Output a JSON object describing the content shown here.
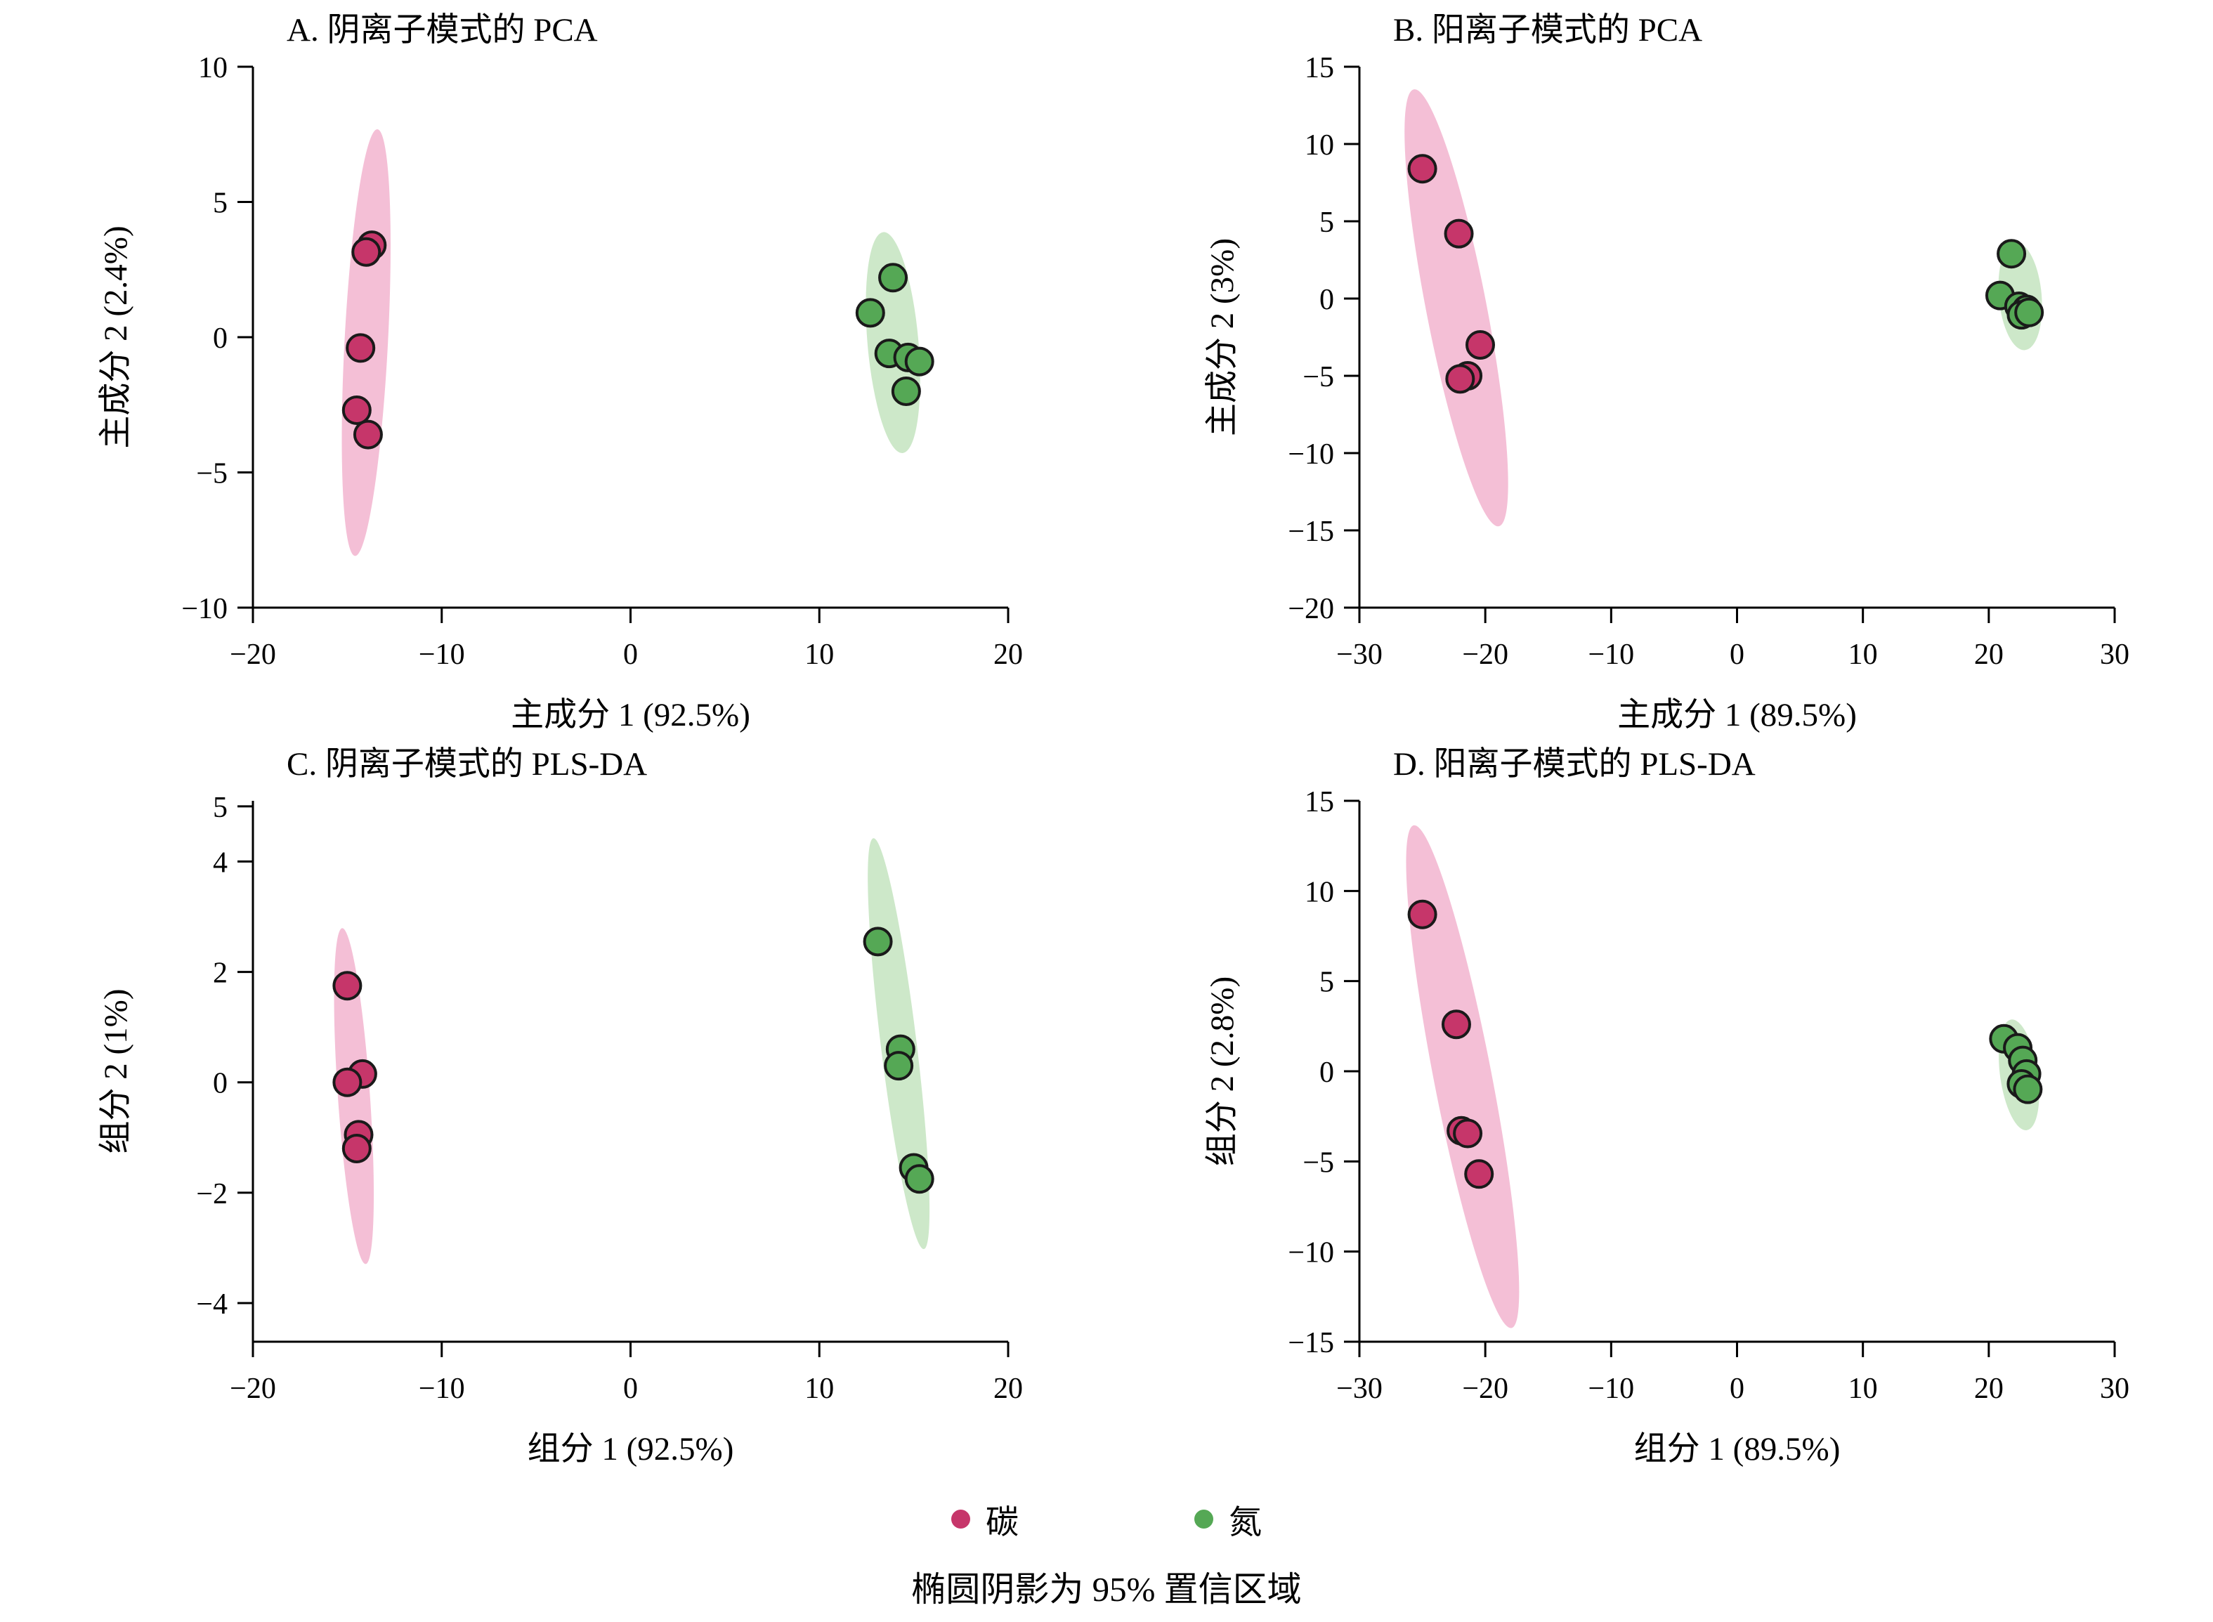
{
  "colors": {
    "carbon_point": "#c6366a",
    "carbon_ellipse": "#f3bad2",
    "nitrogen_point": "#55a855",
    "nitrogen_ellipse": "#c9e6c4",
    "point_stroke": "#1a1a1a",
    "axis": "#000000"
  },
  "legend": {
    "items": [
      {
        "name": "carbon",
        "label": "碳"
      },
      {
        "name": "nitrogen",
        "label": "氮"
      }
    ],
    "caption": "椭圆阴影为 95% 置信区域"
  },
  "chart_data": [
    {
      "id": "A",
      "type": "scatter",
      "title": "A. 阴离子模式的 PCA",
      "xlabel": "主成分 1 (92.5%)",
      "ylabel": "主成分 2 (2.4%)",
      "xlim": [
        -20,
        20
      ],
      "ylim": [
        -10,
        10
      ],
      "xticks": [
        -20,
        -10,
        0,
        10,
        20
      ],
      "yticks": [
        -10,
        -5,
        0,
        5,
        10
      ],
      "grid": false,
      "series": [
        {
          "name": "碳",
          "color_key": "carbon",
          "points": [
            [
              -13.7,
              3.4
            ],
            [
              -14.0,
              3.15
            ],
            [
              -14.3,
              -0.4
            ],
            [
              -14.5,
              -2.7
            ],
            [
              -13.9,
              -3.6
            ]
          ],
          "ellipse": {
            "cx": -14.0,
            "cy": -0.2,
            "rx": 1.15,
            "ry": 7.9,
            "angle": 3
          }
        },
        {
          "name": "氮",
          "color_key": "nitrogen",
          "points": [
            [
              13.9,
              2.2
            ],
            [
              12.7,
              0.9
            ],
            [
              13.7,
              -0.6
            ],
            [
              14.7,
              -0.75
            ],
            [
              15.3,
              -0.9
            ],
            [
              14.6,
              -2.0
            ]
          ],
          "ellipse": {
            "cx": 13.9,
            "cy": -0.2,
            "rx": 1.35,
            "ry": 4.1,
            "angle": -5
          }
        }
      ]
    },
    {
      "id": "B",
      "type": "scatter",
      "title": "B. 阳离子模式的 PCA",
      "xlabel": "主成分 1 (89.5%)",
      "ylabel": "主成分 2 (3%)",
      "xlim": [
        -30,
        30
      ],
      "ylim": [
        -20,
        15
      ],
      "xticks": [
        -30,
        -20,
        -10,
        0,
        10,
        20,
        30
      ],
      "yticks": [
        -20,
        -15,
        -10,
        -5,
        0,
        5,
        10,
        15
      ],
      "grid": false,
      "series": [
        {
          "name": "碳",
          "color_key": "carbon",
          "points": [
            [
              -25.0,
              8.4
            ],
            [
              -22.1,
              4.2
            ],
            [
              -20.4,
              -3.0
            ],
            [
              -21.4,
              -5.0
            ],
            [
              -22.0,
              -5.2
            ]
          ],
          "ellipse": {
            "cx": -22.3,
            "cy": -0.6,
            "rx": 2.4,
            "ry": 14.4,
            "angle": -11
          }
        },
        {
          "name": "氮",
          "color_key": "nitrogen",
          "points": [
            [
              21.8,
              2.9
            ],
            [
              20.9,
              0.2
            ],
            [
              22.4,
              -0.5
            ],
            [
              23.0,
              -0.7
            ],
            [
              22.6,
              -1.05
            ],
            [
              23.2,
              -0.9
            ]
          ],
          "ellipse": {
            "cx": 22.5,
            "cy": 0.15,
            "rx": 1.7,
            "ry": 3.5,
            "angle": -5
          }
        }
      ]
    },
    {
      "id": "C",
      "type": "scatter",
      "title": "C. 阴离子模式的 PLS-DA",
      "xlabel": "组分 1 (92.5%)",
      "ylabel": "组分 2 (1%)",
      "xlim": [
        -20,
        20
      ],
      "ylim": [
        -4.7,
        5.1
      ],
      "xticks": [
        -20,
        -10,
        0,
        10,
        20
      ],
      "yticks": [
        -4,
        -2,
        0,
        2,
        4,
        5
      ],
      "grid": false,
      "series": [
        {
          "name": "碳",
          "color_key": "carbon",
          "points": [
            [
              -15.0,
              1.75
            ],
            [
              -14.2,
              0.15
            ],
            [
              -15.0,
              0.0
            ],
            [
              -14.4,
              -0.95
            ],
            [
              -14.5,
              -1.2
            ]
          ],
          "ellipse": {
            "cx": -14.65,
            "cy": -0.25,
            "rx": 0.85,
            "ry": 3.05,
            "angle": -4
          }
        },
        {
          "name": "氮",
          "color_key": "nitrogen",
          "points": [
            [
              13.1,
              2.55
            ],
            [
              14.3,
              0.6
            ],
            [
              14.2,
              0.3
            ],
            [
              15.0,
              -1.55
            ],
            [
              15.3,
              -1.75
            ]
          ],
          "ellipse": {
            "cx": 14.2,
            "cy": 0.7,
            "rx": 0.95,
            "ry": 3.75,
            "angle": -7
          }
        }
      ]
    },
    {
      "id": "D",
      "type": "scatter",
      "title": "D. 阳离子模式的 PLS-DA",
      "xlabel": "组分 1 (89.5%)",
      "ylabel": "组分 2 (2.8%)",
      "xlim": [
        -30,
        30
      ],
      "ylim": [
        -15,
        15
      ],
      "xticks": [
        -30,
        -20,
        -10,
        0,
        10,
        20,
        30
      ],
      "yticks": [
        -15,
        -10,
        -5,
        0,
        5,
        10,
        15
      ],
      "grid": false,
      "series": [
        {
          "name": "碳",
          "color_key": "carbon",
          "points": [
            [
              -25.0,
              8.7
            ],
            [
              -22.3,
              2.6
            ],
            [
              -21.9,
              -3.3
            ],
            [
              -21.4,
              -3.45
            ],
            [
              -20.5,
              -5.7
            ]
          ],
          "ellipse": {
            "cx": -21.8,
            "cy": -0.3,
            "rx": 2.3,
            "ry": 14.2,
            "angle": -11
          }
        },
        {
          "name": "氮",
          "color_key": "nitrogen",
          "points": [
            [
              21.2,
              1.8
            ],
            [
              22.3,
              1.3
            ],
            [
              22.7,
              0.6
            ],
            [
              23.0,
              -0.15
            ],
            [
              22.6,
              -0.7
            ],
            [
              23.1,
              -1.0
            ]
          ],
          "ellipse": {
            "cx": 22.4,
            "cy": -0.2,
            "rx": 1.5,
            "ry": 3.1,
            "angle": -8
          }
        }
      ]
    }
  ]
}
